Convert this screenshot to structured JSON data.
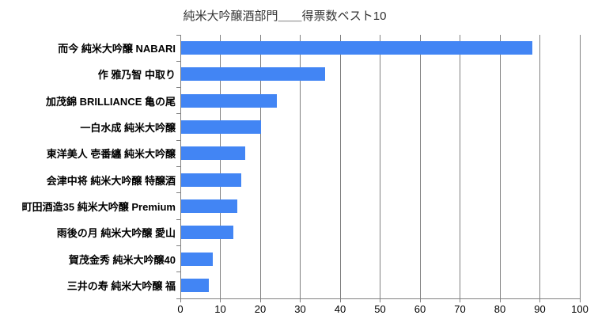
{
  "chart_data": {
    "type": "bar",
    "orientation": "horizontal",
    "title": "純米大吟醸酒部門＿＿得票数ベスト10",
    "categories": [
      "而今 純米大吟醸 NABARI",
      "作 雅乃智 中取り",
      "加茂錦 BRILLIANCE 亀の尾",
      "一白水成 純米大吟醸",
      "東洋美人 壱番纏 純米大吟醸",
      "会津中将 純米大吟醸 特醸酒",
      "町田酒造35 純米大吟醸 Premium",
      "雨後の月 純米大吟醸 愛山",
      "賀茂金秀 純米大吟醸40",
      "三井の寿 純米大吟醸 福"
    ],
    "values": [
      88,
      36,
      24,
      20,
      16,
      15,
      14,
      13,
      8,
      7
    ],
    "xlabel": "",
    "ylabel": "",
    "xlim": [
      0,
      100
    ],
    "xticks": [
      "0",
      "10",
      "20",
      "30",
      "40",
      "50",
      "60",
      "70",
      "80",
      "90",
      "100"
    ],
    "grid": true,
    "legend": false,
    "colors": {
      "bar": "#4285f4",
      "grid": "#808080",
      "axis": "#808080",
      "text": "#000000",
      "title": "#333333",
      "background": "#ffffff"
    }
  }
}
